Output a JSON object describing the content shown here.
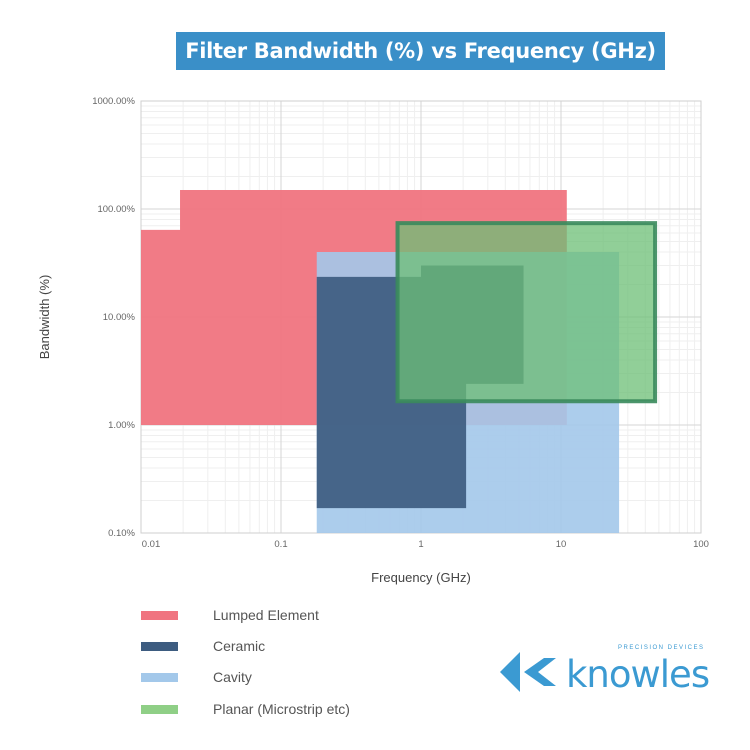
{
  "chart_data": {
    "type": "area",
    "title": "Filter Bandwidth (%) vs Frequency (GHz)",
    "xlabel": "Frequency (GHz)",
    "ylabel": "Bandwidth (%)",
    "xscale": "log",
    "yscale": "log",
    "xlim": [
      0.01,
      100
    ],
    "ylim": [
      0.1,
      1000
    ],
    "xticks": [
      0.01,
      0.1,
      1,
      10,
      100
    ],
    "xtick_labels": [
      "0.01",
      "0.1",
      "1",
      "10",
      "100"
    ],
    "yticks": [
      0.1,
      1,
      10,
      100,
      1000
    ],
    "ytick_labels": [
      "0.10%",
      "1.00%",
      "10.00%",
      "100.00%",
      "1000.00%"
    ],
    "grid": true,
    "legend_position": "bottom-left",
    "series": [
      {
        "name": "Lumped Element",
        "color": "#f07480",
        "opacity": 0.95,
        "polygon": [
          [
            0.01,
            1
          ],
          [
            0.01,
            64
          ],
          [
            0.019,
            64
          ],
          [
            0.019,
            150
          ],
          [
            11,
            150
          ],
          [
            11,
            1
          ]
        ]
      },
      {
        "name": "Cavity",
        "color": "#a3c8ea",
        "opacity": 0.9,
        "polygon": [
          [
            0.18,
            0.1
          ],
          [
            0.18,
            40
          ],
          [
            26,
            40
          ],
          [
            26,
            0.1
          ]
        ]
      },
      {
        "name": "Ceramic",
        "color": "#3d5c80",
        "opacity": 0.92,
        "polygon": [
          [
            0.18,
            0.17
          ],
          [
            0.18,
            23.5
          ],
          [
            1.0,
            23.5
          ],
          [
            1.0,
            30
          ],
          [
            5.4,
            30
          ],
          [
            5.4,
            2.4
          ],
          [
            2.1,
            2.4
          ],
          [
            2.1,
            0.17
          ]
        ]
      },
      {
        "name": "Planar (Microstrip etc)",
        "color": "#6cbf75",
        "border": "#3a8a5c",
        "opacity": 0.75,
        "polygon": [
          [
            0.68,
            1.66
          ],
          [
            0.68,
            74
          ],
          [
            47,
            74
          ],
          [
            47,
            1.66
          ]
        ]
      }
    ]
  },
  "legend": [
    {
      "label": "Lumped Element",
      "color": "#f07480"
    },
    {
      "label": "Ceramic",
      "color": "#3d5c80"
    },
    {
      "label": "Cavity",
      "color": "#a3c8ea"
    },
    {
      "label": "Planar (Microstrip etc)",
      "color": "#8fcf86"
    }
  ],
  "logo": {
    "name": "knowles",
    "tagline": "PRECISION DEVICES",
    "color": "#3b9ad2"
  }
}
